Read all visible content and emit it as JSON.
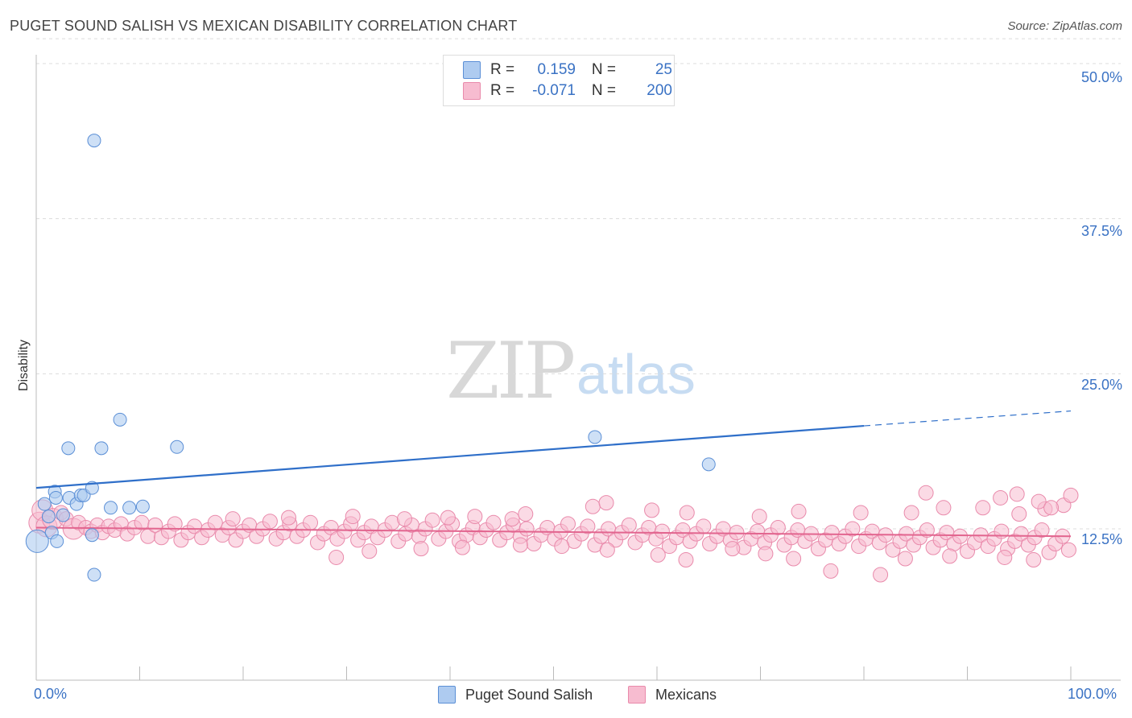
{
  "title": "PUGET SOUND SALISH VS MEXICAN DISABILITY CORRELATION CHART",
  "source": "Source: ZipAtlas.com",
  "watermark": {
    "zip": "ZIP",
    "atlas": "atlas"
  },
  "legend": {
    "rows": [
      {
        "r_label": "R =",
        "r_value": "0.159",
        "n_label": "N =",
        "n_value": "25"
      },
      {
        "r_label": "R =",
        "r_value": "-0.071",
        "n_label": "N =",
        "n_value": "200"
      }
    ]
  },
  "colors": {
    "blue_fill": "#aecbf0",
    "blue_stroke": "#5b8fd6",
    "blue_line": "#2f6fc9",
    "pink_fill": "#f7bcd0",
    "pink_stroke": "#e98aab",
    "pink_line": "#e2658f"
  },
  "chart_data": {
    "type": "scatter",
    "title": "PUGET SOUND SALISH VS MEXICAN DISABILITY CORRELATION CHART",
    "xlabel": "",
    "ylabel": "Disability",
    "xlim": [
      0,
      100
    ],
    "ylim": [
      0,
      52
    ],
    "x_tick_labels": [
      "0.0%",
      "100.0%"
    ],
    "y_ticks": [
      12.5,
      25.0,
      37.5,
      50.0
    ],
    "y_tick_labels": [
      "12.5%",
      "25.0%",
      "37.5%",
      "50.0%"
    ],
    "grid": true,
    "series": [
      {
        "name": "Puget Sound Salish",
        "points": [
          [
            0.1,
            11.5,
            "lg"
          ],
          [
            1.5,
            12.2
          ],
          [
            2.0,
            11.5
          ],
          [
            0.8,
            14.5
          ],
          [
            1.8,
            15.5
          ],
          [
            1.9,
            15.0
          ],
          [
            3.2,
            15.0
          ],
          [
            3.9,
            14.5
          ],
          [
            4.3,
            15.2
          ],
          [
            4.6,
            15.2
          ],
          [
            5.4,
            15.8
          ],
          [
            3.1,
            19.0
          ],
          [
            6.3,
            19.0
          ],
          [
            5.4,
            12.0
          ],
          [
            7.2,
            14.2
          ],
          [
            8.1,
            21.3
          ],
          [
            10.3,
            14.3
          ],
          [
            13.6,
            19.1
          ],
          [
            5.6,
            43.8
          ],
          [
            5.6,
            8.8
          ],
          [
            9.0,
            14.2
          ],
          [
            54.0,
            19.9
          ],
          [
            65.0,
            17.7
          ],
          [
            1.2,
            13.5
          ],
          [
            2.6,
            13.6
          ]
        ],
        "trend": {
          "x0": 0,
          "y0": 15.8,
          "x1": 80,
          "y1": 20.8,
          "dash_to_x": 100,
          "dash_to_y": 22.0
        }
      },
      {
        "name": "Mexicans",
        "points": [
          [
            0.3,
            13.0,
            "lg"
          ],
          [
            0.6,
            14.0,
            "lg"
          ],
          [
            1.0,
            12.7,
            "lg"
          ],
          [
            1.6,
            13.3,
            "lg"
          ],
          [
            2.4,
            13.8
          ],
          [
            2.9,
            13.3
          ],
          [
            3.6,
            12.5,
            "lg"
          ],
          [
            4.1,
            13.0
          ],
          [
            4.8,
            12.6
          ],
          [
            5.3,
            12.3
          ],
          [
            5.9,
            12.8
          ],
          [
            6.4,
            12.2
          ],
          [
            7.0,
            12.7
          ],
          [
            7.6,
            12.4
          ],
          [
            8.2,
            12.9
          ],
          [
            8.8,
            12.1
          ],
          [
            9.5,
            12.6
          ],
          [
            10.2,
            13.0
          ],
          [
            10.8,
            11.9
          ],
          [
            11.5,
            12.8
          ],
          [
            12.1,
            11.8
          ],
          [
            12.8,
            12.3
          ],
          [
            13.4,
            12.9
          ],
          [
            14.0,
            11.6
          ],
          [
            14.7,
            12.2
          ],
          [
            15.3,
            12.7
          ],
          [
            16.0,
            11.8
          ],
          [
            16.6,
            12.4
          ],
          [
            17.3,
            13.0
          ],
          [
            18.0,
            12.0
          ],
          [
            18.6,
            12.6
          ],
          [
            19.3,
            11.6
          ],
          [
            20.0,
            12.3
          ],
          [
            20.6,
            12.8
          ],
          [
            21.3,
            11.9
          ],
          [
            21.9,
            12.5
          ],
          [
            22.6,
            13.1
          ],
          [
            23.2,
            11.7
          ],
          [
            23.9,
            12.2
          ],
          [
            24.5,
            12.9
          ],
          [
            25.2,
            11.9
          ],
          [
            25.8,
            12.4
          ],
          [
            26.5,
            13.0
          ],
          [
            27.2,
            11.4
          ],
          [
            27.8,
            12.1
          ],
          [
            28.5,
            12.6
          ],
          [
            29.1,
            11.7
          ],
          [
            29.8,
            12.3
          ],
          [
            30.4,
            12.9
          ],
          [
            31.1,
            11.6
          ],
          [
            31.7,
            12.2
          ],
          [
            32.4,
            12.7
          ],
          [
            33.0,
            11.8
          ],
          [
            33.7,
            12.4
          ],
          [
            34.4,
            13.0
          ],
          [
            35.0,
            11.5
          ],
          [
            35.7,
            12.1
          ],
          [
            36.3,
            12.8
          ],
          [
            37.0,
            11.9
          ],
          [
            37.6,
            12.5
          ],
          [
            38.3,
            13.2
          ],
          [
            38.9,
            11.7
          ],
          [
            39.6,
            12.3
          ],
          [
            40.2,
            12.9
          ],
          [
            40.9,
            11.5
          ],
          [
            41.6,
            12.0
          ],
          [
            42.2,
            12.6
          ],
          [
            42.9,
            11.8
          ],
          [
            43.5,
            12.4
          ],
          [
            44.2,
            13.0
          ],
          [
            44.8,
            11.6
          ],
          [
            45.5,
            12.2
          ],
          [
            46.1,
            12.8
          ],
          [
            46.8,
            11.9
          ],
          [
            47.4,
            12.5
          ],
          [
            48.1,
            11.3
          ],
          [
            48.8,
            12.0
          ],
          [
            49.4,
            12.6
          ],
          [
            50.1,
            11.7
          ],
          [
            50.7,
            12.3
          ],
          [
            51.4,
            12.9
          ],
          [
            52.0,
            11.5
          ],
          [
            52.7,
            12.1
          ],
          [
            53.3,
            12.7
          ],
          [
            54.0,
            11.2
          ],
          [
            54.6,
            11.9
          ],
          [
            55.3,
            12.5
          ],
          [
            56.0,
            11.6
          ],
          [
            56.6,
            12.2
          ],
          [
            57.3,
            12.8
          ],
          [
            57.9,
            11.4
          ],
          [
            58.6,
            12.0
          ],
          [
            59.2,
            12.6
          ],
          [
            59.9,
            11.7
          ],
          [
            60.5,
            12.3
          ],
          [
            61.2,
            11.1
          ],
          [
            61.9,
            11.8
          ],
          [
            62.5,
            12.4
          ],
          [
            63.2,
            11.5
          ],
          [
            63.8,
            12.1
          ],
          [
            64.5,
            12.7
          ],
          [
            65.1,
            11.3
          ],
          [
            65.8,
            11.9
          ],
          [
            66.4,
            12.5
          ],
          [
            67.1,
            11.6
          ],
          [
            67.7,
            12.2
          ],
          [
            68.4,
            11.0
          ],
          [
            69.1,
            11.7
          ],
          [
            69.7,
            12.3
          ],
          [
            70.4,
            11.4
          ],
          [
            71.0,
            12.0
          ],
          [
            71.7,
            12.6
          ],
          [
            72.3,
            11.2
          ],
          [
            73.0,
            11.8
          ],
          [
            73.6,
            12.4
          ],
          [
            74.3,
            11.5
          ],
          [
            74.9,
            12.1
          ],
          [
            75.6,
            10.9
          ],
          [
            76.3,
            11.6
          ],
          [
            76.9,
            12.2
          ],
          [
            77.6,
            11.3
          ],
          [
            78.2,
            11.9
          ],
          [
            78.9,
            12.5
          ],
          [
            79.5,
            11.1
          ],
          [
            80.2,
            11.7
          ],
          [
            80.8,
            12.3
          ],
          [
            81.5,
            11.4
          ],
          [
            82.1,
            12.0
          ],
          [
            82.8,
            10.8
          ],
          [
            83.5,
            11.5
          ],
          [
            84.1,
            12.1
          ],
          [
            84.8,
            11.2
          ],
          [
            85.4,
            11.8
          ],
          [
            86.1,
            12.4
          ],
          [
            86.7,
            11.0
          ],
          [
            87.4,
            11.6
          ],
          [
            88.0,
            12.2
          ],
          [
            88.7,
            11.3
          ],
          [
            89.3,
            11.9
          ],
          [
            90.0,
            10.7
          ],
          [
            90.7,
            11.4
          ],
          [
            91.3,
            12.0
          ],
          [
            92.0,
            11.1
          ],
          [
            92.6,
            11.7
          ],
          [
            93.3,
            12.3
          ],
          [
            93.9,
            10.9
          ],
          [
            94.6,
            11.5
          ],
          [
            95.2,
            12.1
          ],
          [
            95.9,
            11.2
          ],
          [
            96.5,
            11.8
          ],
          [
            97.2,
            12.4
          ],
          [
            97.9,
            10.6
          ],
          [
            98.5,
            11.3
          ],
          [
            99.2,
            11.9
          ],
          [
            99.8,
            10.8
          ],
          [
            29.0,
            10.2
          ],
          [
            32.2,
            10.7
          ],
          [
            37.2,
            10.9
          ],
          [
            41.2,
            11.0
          ],
          [
            46.8,
            11.2
          ],
          [
            50.8,
            11.1
          ],
          [
            55.2,
            10.8
          ],
          [
            60.1,
            10.4
          ],
          [
            62.8,
            10.0
          ],
          [
            67.3,
            10.9
          ],
          [
            70.5,
            10.5
          ],
          [
            73.2,
            10.1
          ],
          [
            76.8,
            9.1
          ],
          [
            81.6,
            8.8
          ],
          [
            84.0,
            10.1
          ],
          [
            88.3,
            10.3
          ],
          [
            93.6,
            10.2
          ],
          [
            96.4,
            10.0
          ],
          [
            53.8,
            14.3
          ],
          [
            55.1,
            14.6
          ],
          [
            59.5,
            14.0
          ],
          [
            62.9,
            13.8
          ],
          [
            69.9,
            13.5
          ],
          [
            73.7,
            13.9
          ],
          [
            79.7,
            13.8
          ],
          [
            84.6,
            13.8
          ],
          [
            87.7,
            14.2
          ],
          [
            91.5,
            14.2
          ],
          [
            95.0,
            13.7
          ],
          [
            97.5,
            14.1
          ],
          [
            99.3,
            14.4
          ],
          [
            86.0,
            15.4
          ],
          [
            93.2,
            15.0
          ],
          [
            96.9,
            14.7
          ],
          [
            98.1,
            14.2
          ],
          [
            100.0,
            15.2
          ],
          [
            94.8,
            15.3
          ],
          [
            46.0,
            13.3
          ],
          [
            47.3,
            13.7
          ],
          [
            42.4,
            13.5
          ],
          [
            39.8,
            13.4
          ],
          [
            35.6,
            13.3
          ],
          [
            30.6,
            13.5
          ],
          [
            24.4,
            13.4
          ],
          [
            19.0,
            13.3
          ]
        ],
        "trend": {
          "x0": 0,
          "y0": 12.6,
          "x1": 100,
          "y1": 11.9
        }
      }
    ],
    "bottom_legend": [
      "Puget Sound Salish",
      "Mexicans"
    ]
  }
}
